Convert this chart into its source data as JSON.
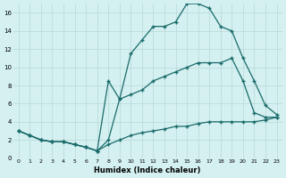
{
  "xlabel": "Humidex (Indice chaleur)",
  "bg_color": "#d4f0f0",
  "line_color": "#1a6b6b",
  "grid_color": "#b8d8d8",
  "xlim": [
    -0.5,
    23.5
  ],
  "ylim": [
    0,
    17
  ],
  "xticks": [
    0,
    1,
    2,
    3,
    4,
    5,
    6,
    7,
    8,
    9,
    10,
    11,
    12,
    13,
    14,
    15,
    16,
    17,
    18,
    19,
    20,
    21,
    22,
    23
  ],
  "yticks": [
    0,
    2,
    4,
    6,
    8,
    10,
    12,
    14,
    16
  ],
  "line1_x": [
    0,
    1,
    2,
    3,
    4,
    5,
    6,
    7,
    8,
    9,
    10,
    11,
    12,
    13,
    14,
    15,
    16,
    17,
    18,
    19,
    20,
    21,
    22,
    23
  ],
  "line1_y": [
    3.0,
    2.5,
    2.0,
    1.8,
    1.8,
    1.5,
    1.2,
    0.8,
    1.5,
    2.0,
    2.5,
    2.8,
    3.0,
    3.2,
    3.5,
    3.5,
    3.8,
    4.0,
    4.0,
    4.0,
    4.0,
    4.0,
    4.2,
    4.5
  ],
  "line2_x": [
    0,
    1,
    2,
    3,
    4,
    5,
    6,
    7,
    8,
    9,
    10,
    11,
    12,
    13,
    14,
    15,
    16,
    17,
    18,
    19,
    20,
    21,
    22,
    23
  ],
  "line2_y": [
    3.0,
    2.5,
    2.0,
    1.8,
    1.8,
    1.5,
    1.2,
    0.8,
    8.5,
    6.5,
    11.5,
    13.0,
    14.5,
    14.5,
    15.0,
    17.0,
    17.0,
    16.5,
    14.5,
    14.0,
    11.0,
    8.5,
    5.8,
    4.8
  ],
  "line3_x": [
    0,
    1,
    2,
    3,
    4,
    5,
    6,
    7,
    8,
    9,
    10,
    11,
    12,
    13,
    14,
    15,
    16,
    17,
    18,
    19,
    20,
    21,
    22,
    23
  ],
  "line3_y": [
    3.0,
    2.5,
    2.0,
    1.8,
    1.8,
    1.5,
    1.2,
    0.8,
    2.0,
    6.5,
    7.0,
    7.5,
    8.5,
    9.0,
    9.5,
    10.0,
    10.5,
    10.5,
    10.5,
    11.0,
    8.5,
    5.0,
    4.5,
    4.5
  ]
}
